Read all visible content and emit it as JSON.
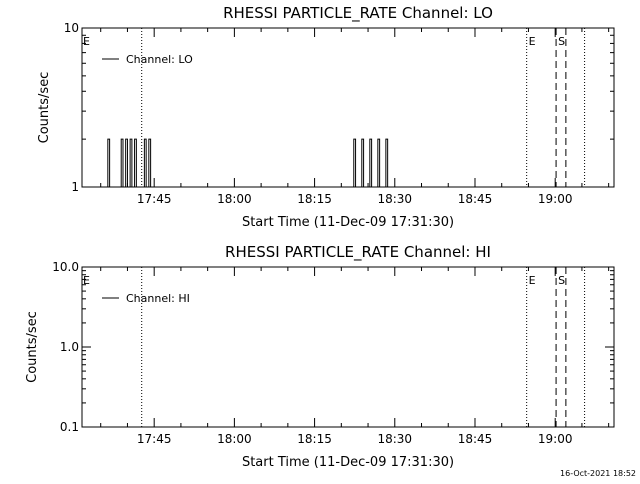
{
  "chart_data": [
    {
      "type": "line",
      "title": "RHESSI PARTICLE_RATE Channel: LO",
      "xlabel": "Start Time (11-Dec-09 17:31:30)",
      "ylabel": "Counts/sec",
      "y_scale": "log",
      "ylim": [
        1,
        10
      ],
      "y_ticks": [
        {
          "value": 1,
          "label": "1"
        },
        {
          "value": 10,
          "label": "10"
        }
      ],
      "xlim": [
        "17:31:30",
        "19:11:00"
      ],
      "x_ticks": [
        "17:45",
        "18:00",
        "18:15",
        "18:30",
        "18:45",
        "19:00"
      ],
      "grid": false,
      "legend": {
        "position": "top-left",
        "entries": [
          "Channel: LO"
        ]
      },
      "series": [
        {
          "name": "Channel: LO",
          "points": [
            [
              "17:36:20",
              1
            ],
            [
              "17:36:20",
              2
            ],
            [
              "17:36:40",
              2
            ],
            [
              "17:36:40",
              1
            ],
            [
              "17:38:50",
              1
            ],
            [
              "17:38:50",
              2
            ],
            [
              "17:39:10",
              2
            ],
            [
              "17:39:10",
              1
            ],
            [
              "17:39:40",
              1
            ],
            [
              "17:39:40",
              2
            ],
            [
              "17:40:00",
              2
            ],
            [
              "17:40:00",
              1
            ],
            [
              "17:40:30",
              1
            ],
            [
              "17:40:30",
              2
            ],
            [
              "17:40:50",
              2
            ],
            [
              "17:40:50",
              1
            ],
            [
              "17:41:20",
              1
            ],
            [
              "17:41:20",
              2
            ],
            [
              "17:41:40",
              2
            ],
            [
              "17:41:40",
              1
            ],
            [
              "17:43:10",
              1
            ],
            [
              "17:43:10",
              2
            ],
            [
              "17:43:30",
              2
            ],
            [
              "17:43:30",
              1
            ],
            [
              "17:44:00",
              1
            ],
            [
              "17:44:00",
              2
            ],
            [
              "17:44:20",
              2
            ],
            [
              "17:44:20",
              1
            ],
            [
              "18:22:20",
              1
            ],
            [
              "18:22:20",
              2
            ],
            [
              "18:22:40",
              2
            ],
            [
              "18:22:40",
              1
            ],
            [
              "18:23:50",
              1
            ],
            [
              "18:23:50",
              2
            ],
            [
              "18:24:10",
              2
            ],
            [
              "18:24:10",
              1
            ],
            [
              "18:25:20",
              1
            ],
            [
              "18:25:20",
              2
            ],
            [
              "18:25:40",
              2
            ],
            [
              "18:25:40",
              1
            ],
            [
              "18:26:50",
              1
            ],
            [
              "18:26:50",
              2
            ],
            [
              "18:27:10",
              2
            ],
            [
              "18:27:10",
              1
            ],
            [
              "18:28:20",
              1
            ],
            [
              "18:28:20",
              2
            ],
            [
              "18:28:40",
              2
            ],
            [
              "18:28:40",
              1
            ]
          ]
        }
      ],
      "vlines": [
        {
          "time": "17:42:40",
          "style": "dotted",
          "label": ""
        },
        {
          "time": "17:31:30",
          "style": "none",
          "label": "E"
        },
        {
          "time": "18:54:40",
          "style": "dotted",
          "label": "E"
        },
        {
          "time": "19:00:10",
          "style": "dashed",
          "label": "S"
        },
        {
          "time": "19:02:00",
          "style": "dashed",
          "label": ""
        },
        {
          "time": "19:05:30",
          "style": "dotted",
          "label": ""
        }
      ]
    },
    {
      "type": "line",
      "title": "RHESSI PARTICLE_RATE Channel: HI",
      "xlabel": "Start Time (11-Dec-09 17:31:30)",
      "ylabel": "Counts/sec",
      "y_scale": "log",
      "ylim": [
        0.1,
        10
      ],
      "y_ticks": [
        {
          "value": 0.1,
          "label": "0.1"
        },
        {
          "value": 1,
          "label": "1.0"
        },
        {
          "value": 10,
          "label": "10.0"
        }
      ],
      "xlim": [
        "17:31:30",
        "19:11:00"
      ],
      "x_ticks": [
        "17:45",
        "18:00",
        "18:15",
        "18:30",
        "18:45",
        "19:00"
      ],
      "grid": false,
      "legend": {
        "position": "top-left",
        "entries": [
          "Channel: HI"
        ]
      },
      "series": [
        {
          "name": "Channel: HI",
          "points": []
        }
      ],
      "vlines": [
        {
          "time": "17:42:40",
          "style": "dotted",
          "label": ""
        },
        {
          "time": "17:31:30",
          "style": "none",
          "label": "E"
        },
        {
          "time": "18:54:40",
          "style": "dotted",
          "label": "E"
        },
        {
          "time": "19:00:10",
          "style": "dashed",
          "label": "S"
        },
        {
          "time": "19:02:00",
          "style": "dashed",
          "label": ""
        },
        {
          "time": "19:05:30",
          "style": "dotted",
          "label": ""
        }
      ]
    }
  ],
  "footer": {
    "timestamp": "16-Oct-2021 18:52"
  }
}
